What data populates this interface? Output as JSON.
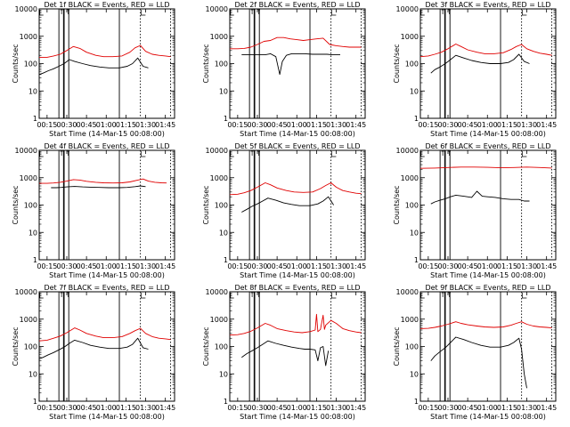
{
  "chart_data": [
    {
      "type": "line",
      "title": "Det 1f  BLACK = Events, RED = LLD",
      "xlabel": "Start Time (14-Mar-15 00:08:00)",
      "ylabel": "Counts/sec",
      "yscale": "log",
      "ylim": [
        1,
        10000
      ],
      "xlim_minutes": [
        9,
        112
      ],
      "y_tick_labels": [
        "1",
        "10",
        "100",
        "1000",
        "10000"
      ],
      "x_tick_labels": [
        "00:15",
        "00:30",
        "00:45",
        "01:00",
        "01:15",
        "01:30",
        "01:45"
      ],
      "vlines_solid": [
        24,
        27.5,
        28,
        31.5,
        70
      ],
      "vlines_dotted": [
        86,
        109
      ],
      "series": [
        {
          "color": "#e00000",
          "x": [
            9,
            15,
            20,
            25,
            30,
            35,
            40,
            45,
            52,
            58,
            65,
            72,
            78,
            82,
            86,
            90,
            95,
            100,
            105,
            109
          ],
          "y": [
            170,
            170,
            190,
            220,
            300,
            420,
            360,
            260,
            200,
            180,
            180,
            190,
            260,
            380,
            460,
            280,
            220,
            200,
            190,
            180
          ]
        },
        {
          "color": "#000000",
          "x": [
            9,
            12,
            16,
            20,
            24,
            28,
            32,
            36,
            42,
            48,
            55,
            62,
            70,
            76,
            80,
            84,
            88,
            92
          ],
          "y": [
            40,
            45,
            55,
            65,
            80,
            100,
            140,
            120,
            100,
            85,
            75,
            70,
            70,
            80,
            100,
            160,
            80,
            70
          ]
        }
      ]
    },
    {
      "type": "line",
      "title": "Det 2f  BLACK = Events, RED = LLD",
      "xlabel": "Start Time (14-Mar-15 00:08:00)",
      "ylabel": "Counts/sec",
      "yscale": "log",
      "ylim": [
        1,
        10000
      ],
      "xlim_minutes": [
        9,
        112
      ],
      "y_tick_labels": [
        "1",
        "10",
        "100",
        "1000",
        "10000"
      ],
      "x_tick_labels": [
        "00:15",
        "00:30",
        "00:45",
        "01:00",
        "01:15",
        "01:30",
        "01:45"
      ],
      "vlines_solid": [
        24,
        27.5,
        28,
        31.5,
        70
      ],
      "vlines_dotted": [
        86,
        109
      ],
      "series": [
        {
          "color": "#e00000",
          "x": [
            9,
            15,
            20,
            25,
            30,
            35,
            40,
            45,
            50,
            55,
            60,
            65,
            70,
            75,
            80,
            85,
            90,
            95,
            100,
            109
          ],
          "y": [
            350,
            350,
            360,
            400,
            500,
            650,
            700,
            900,
            900,
            800,
            750,
            700,
            750,
            800,
            850,
            500,
            450,
            420,
            400,
            400
          ]
        },
        {
          "color": "#000000",
          "x": [
            18,
            22,
            26,
            30,
            36,
            40,
            44,
            47,
            49,
            52,
            56,
            60,
            66,
            72,
            78,
            83,
            87,
            90,
            93
          ],
          "y": [
            210,
            210,
            210,
            210,
            210,
            230,
            180,
            40,
            120,
            200,
            230,
            230,
            230,
            220,
            220,
            220,
            210,
            210,
            210
          ]
        }
      ]
    },
    {
      "type": "line",
      "title": "Det 3f  BLACK = Events, RED = LLD",
      "xlabel": "Start Time (14-Mar-15 00:08:00)",
      "ylabel": "Counts/sec",
      "yscale": "log",
      "ylim": [
        1,
        10000
      ],
      "xlim_minutes": [
        9,
        112
      ],
      "y_tick_labels": [
        "1",
        "10",
        "100",
        "1000",
        "10000"
      ],
      "x_tick_labels": [
        "00:15",
        "00:30",
        "00:45",
        "01:00",
        "01:15",
        "01:30",
        "01:45"
      ],
      "vlines_solid": [
        24,
        27.5,
        28,
        31.5,
        70
      ],
      "vlines_dotted": [
        86,
        109
      ],
      "series": [
        {
          "color": "#e00000",
          "x": [
            9,
            15,
            20,
            25,
            30,
            36,
            40,
            45,
            52,
            58,
            65,
            72,
            78,
            82,
            86,
            90,
            95,
            100,
            105,
            109
          ],
          "y": [
            180,
            190,
            220,
            260,
            350,
            520,
            420,
            320,
            260,
            230,
            230,
            250,
            330,
            420,
            500,
            350,
            280,
            240,
            220,
            200
          ]
        },
        {
          "color": "#000000",
          "x": [
            17,
            20,
            24,
            28,
            32,
            36,
            42,
            48,
            55,
            62,
            70,
            76,
            80,
            84,
            88,
            92
          ],
          "y": [
            45,
            60,
            75,
            100,
            140,
            200,
            160,
            130,
            110,
            100,
            100,
            110,
            140,
            220,
            120,
            100
          ]
        }
      ]
    },
    {
      "type": "line",
      "title": "Det 4f  BLACK = Events, RED = LLD",
      "xlabel": "Start Time (14-Mar-15 00:08:00)",
      "ylabel": "Counts/sec",
      "yscale": "log",
      "ylim": [
        1,
        10000
      ],
      "xlim_minutes": [
        9,
        112
      ],
      "y_tick_labels": [
        "1",
        "10",
        "100",
        "1000",
        "10000"
      ],
      "x_tick_labels": [
        "00:15",
        "00:30",
        "00:45",
        "01:00",
        "01:15",
        "01:30",
        "01:45"
      ],
      "vlines_solid": [
        24,
        27.5,
        28,
        31.5,
        70
      ],
      "vlines_dotted": [
        86,
        109
      ],
      "series": [
        {
          "color": "#e00000",
          "x": [
            9,
            15,
            20,
            25,
            30,
            35,
            40,
            45,
            52,
            58,
            65,
            72,
            78,
            84,
            88,
            92,
            97,
            102,
            106
          ],
          "y": [
            620,
            620,
            640,
            680,
            750,
            850,
            820,
            740,
            680,
            650,
            640,
            650,
            700,
            820,
            900,
            750,
            680,
            650,
            640
          ]
        },
        {
          "color": "#000000",
          "x": [
            18,
            22,
            26,
            30,
            36,
            42,
            48,
            55,
            62,
            70,
            76,
            82,
            86,
            90
          ],
          "y": [
            430,
            430,
            440,
            460,
            480,
            460,
            450,
            440,
            430,
            430,
            440,
            470,
            500,
            470
          ]
        }
      ]
    },
    {
      "type": "line",
      "title": "Det 5f  BLACK = Events, RED = LLD",
      "xlabel": "Start Time (14-Mar-15 00:08:00)",
      "ylabel": "Counts/sec",
      "yscale": "log",
      "ylim": [
        1,
        10000
      ],
      "xlim_minutes": [
        9,
        112
      ],
      "y_tick_labels": [
        "1",
        "10",
        "100",
        "1000",
        "10000"
      ],
      "x_tick_labels": [
        "00:15",
        "00:30",
        "00:45",
        "01:00",
        "01:15",
        "01:30",
        "01:45"
      ],
      "vlines_solid": [
        24,
        27.5,
        28,
        31.5,
        70
      ],
      "vlines_dotted": [
        86,
        109
      ],
      "series": [
        {
          "color": "#e00000",
          "x": [
            9,
            15,
            20,
            25,
            30,
            36,
            40,
            45,
            52,
            58,
            65,
            72,
            78,
            82,
            86,
            90,
            95,
            100,
            105,
            109
          ],
          "y": [
            240,
            250,
            280,
            340,
            450,
            650,
            550,
            420,
            340,
            300,
            290,
            300,
            400,
            520,
            650,
            450,
            340,
            300,
            270,
            260
          ]
        },
        {
          "color": "#000000",
          "x": [
            18,
            22,
            26,
            30,
            34,
            38,
            44,
            50,
            56,
            62,
            70,
            76,
            80,
            84,
            88
          ],
          "y": [
            55,
            70,
            90,
            110,
            140,
            180,
            150,
            120,
            105,
            95,
            95,
            110,
            140,
            200,
            100
          ]
        }
      ]
    },
    {
      "type": "line",
      "title": "Det 6f  BLACK = Events, RED = LLD",
      "xlabel": "Start Time (14-Mar-15 00:08:00)",
      "ylabel": "Counts/sec",
      "yscale": "log",
      "ylim": [
        1,
        10000
      ],
      "xlim_minutes": [
        9,
        112
      ],
      "y_tick_labels": [
        "1",
        "10",
        "100",
        "1000",
        "10000"
      ],
      "x_tick_labels": [
        "00:15",
        "00:30",
        "00:45",
        "01:00",
        "01:15",
        "01:30",
        "01:45"
      ],
      "vlines_solid": [
        24,
        27.5,
        28,
        31.5,
        70
      ],
      "vlines_dotted": [
        86,
        109
      ],
      "series": [
        {
          "color": "#e00000",
          "x": [
            9,
            20,
            30,
            40,
            50,
            60,
            70,
            80,
            90,
            100,
            109
          ],
          "y": [
            2200,
            2250,
            2350,
            2450,
            2450,
            2400,
            2300,
            2350,
            2450,
            2350,
            2250
          ]
        },
        {
          "color": "#000000",
          "x": [
            17,
            20,
            24,
            28,
            32,
            36,
            42,
            48,
            52,
            56,
            60,
            66,
            72,
            78,
            84,
            88,
            92
          ],
          "y": [
            110,
            130,
            150,
            170,
            200,
            230,
            210,
            190,
            320,
            210,
            200,
            190,
            170,
            160,
            160,
            140,
            140
          ]
        }
      ]
    },
    {
      "type": "line",
      "title": "Det 7f  BLACK = Events, RED = LLD",
      "xlabel": "Start Time (14-Mar-15 00:08:00)",
      "ylabel": "Counts/sec",
      "yscale": "log",
      "ylim": [
        1,
        10000
      ],
      "xlim_minutes": [
        9,
        112
      ],
      "y_tick_labels": [
        "1",
        "10",
        "100",
        "1000",
        "10000"
      ],
      "x_tick_labels": [
        "00:15",
        "00:30",
        "00:45",
        "01:00",
        "01:15",
        "01:30",
        "01:45"
      ],
      "vlines_solid": [
        24,
        27.5,
        28,
        31.5,
        70
      ],
      "vlines_dotted": [
        86,
        109
      ],
      "series": [
        {
          "color": "#e00000",
          "x": [
            9,
            15,
            20,
            25,
            30,
            36,
            40,
            45,
            52,
            58,
            65,
            72,
            78,
            82,
            86,
            90,
            95,
            100,
            105,
            109
          ],
          "y": [
            160,
            170,
            200,
            240,
            320,
            480,
            400,
            300,
            240,
            210,
            210,
            230,
            300,
            380,
            460,
            300,
            230,
            200,
            190,
            180
          ]
        },
        {
          "color": "#000000",
          "x": [
            9,
            12,
            16,
            20,
            24,
            28,
            32,
            36,
            42,
            48,
            55,
            62,
            70,
            76,
            80,
            84,
            88,
            92
          ],
          "y": [
            35,
            40,
            50,
            60,
            75,
            95,
            130,
            170,
            140,
            110,
            95,
            85,
            85,
            95,
            120,
            200,
            90,
            80
          ]
        }
      ]
    },
    {
      "type": "line",
      "title": "Det 8f  BLACK = Events, RED = LLD",
      "xlabel": "Start Time (14-Mar-15 00:08:00)",
      "ylabel": "Counts/sec",
      "yscale": "log",
      "ylim": [
        1,
        10000
      ],
      "xlim_minutes": [
        9,
        112
      ],
      "y_tick_labels": [
        "1",
        "10",
        "100",
        "1000",
        "10000"
      ],
      "x_tick_labels": [
        "00:15",
        "00:30",
        "00:45",
        "01:00",
        "01:15",
        "01:30",
        "01:45"
      ],
      "vlines_solid": [
        24,
        27.5,
        28,
        31.5,
        70
      ],
      "vlines_dotted": [
        86,
        109
      ],
      "series": [
        {
          "color": "#e00000",
          "x": [
            9,
            15,
            20,
            25,
            30,
            36,
            40,
            45,
            52,
            58,
            64,
            70,
            74,
            75,
            76,
            78,
            80,
            81,
            82,
            86,
            90,
            95,
            100,
            105,
            109
          ],
          "y": [
            260,
            270,
            300,
            360,
            480,
            700,
            600,
            450,
            380,
            340,
            320,
            350,
            400,
            1500,
            350,
            420,
            1400,
            420,
            600,
            900,
            700,
            450,
            380,
            340,
            320
          ]
        },
        {
          "color": "#000000",
          "x": [
            18,
            22,
            26,
            30,
            34,
            38,
            44,
            50,
            56,
            62,
            66,
            70,
            74,
            76,
            78,
            80,
            82,
            84
          ],
          "y": [
            40,
            55,
            70,
            90,
            120,
            160,
            130,
            110,
            95,
            85,
            80,
            80,
            75,
            30,
            90,
            100,
            20,
            70
          ]
        }
      ]
    },
    {
      "type": "line",
      "title": "Det 9f  BLACK = Events, RED = LLD",
      "xlabel": "Start Time (14-Mar-15 00:08:00)",
      "ylabel": "Counts/sec",
      "yscale": "log",
      "ylim": [
        1,
        10000
      ],
      "xlim_minutes": [
        9,
        112
      ],
      "y_tick_labels": [
        "1",
        "10",
        "100",
        "1000",
        "10000"
      ],
      "x_tick_labels": [
        "00:15",
        "00:30",
        "00:45",
        "01:00",
        "01:15",
        "01:30",
        "01:45"
      ],
      "vlines_solid": [
        24,
        27.5,
        28,
        31.5,
        70
      ],
      "vlines_dotted": [
        86,
        109
      ],
      "series": [
        {
          "color": "#e00000",
          "x": [
            9,
            15,
            20,
            25,
            30,
            36,
            40,
            45,
            52,
            58,
            65,
            72,
            78,
            82,
            86,
            90,
            95,
            100,
            105,
            109
          ],
          "y": [
            450,
            460,
            500,
            560,
            650,
            800,
            700,
            620,
            560,
            520,
            500,
            520,
            600,
            700,
            800,
            650,
            560,
            520,
            500,
            480
          ]
        },
        {
          "color": "#000000",
          "x": [
            17,
            20,
            24,
            28,
            32,
            36,
            42,
            48,
            55,
            62,
            70,
            76,
            80,
            84,
            86,
            88,
            90
          ],
          "y": [
            30,
            45,
            65,
            90,
            140,
            220,
            180,
            140,
            110,
            95,
            95,
            110,
            140,
            200,
            80,
            10,
            3
          ]
        }
      ]
    }
  ]
}
